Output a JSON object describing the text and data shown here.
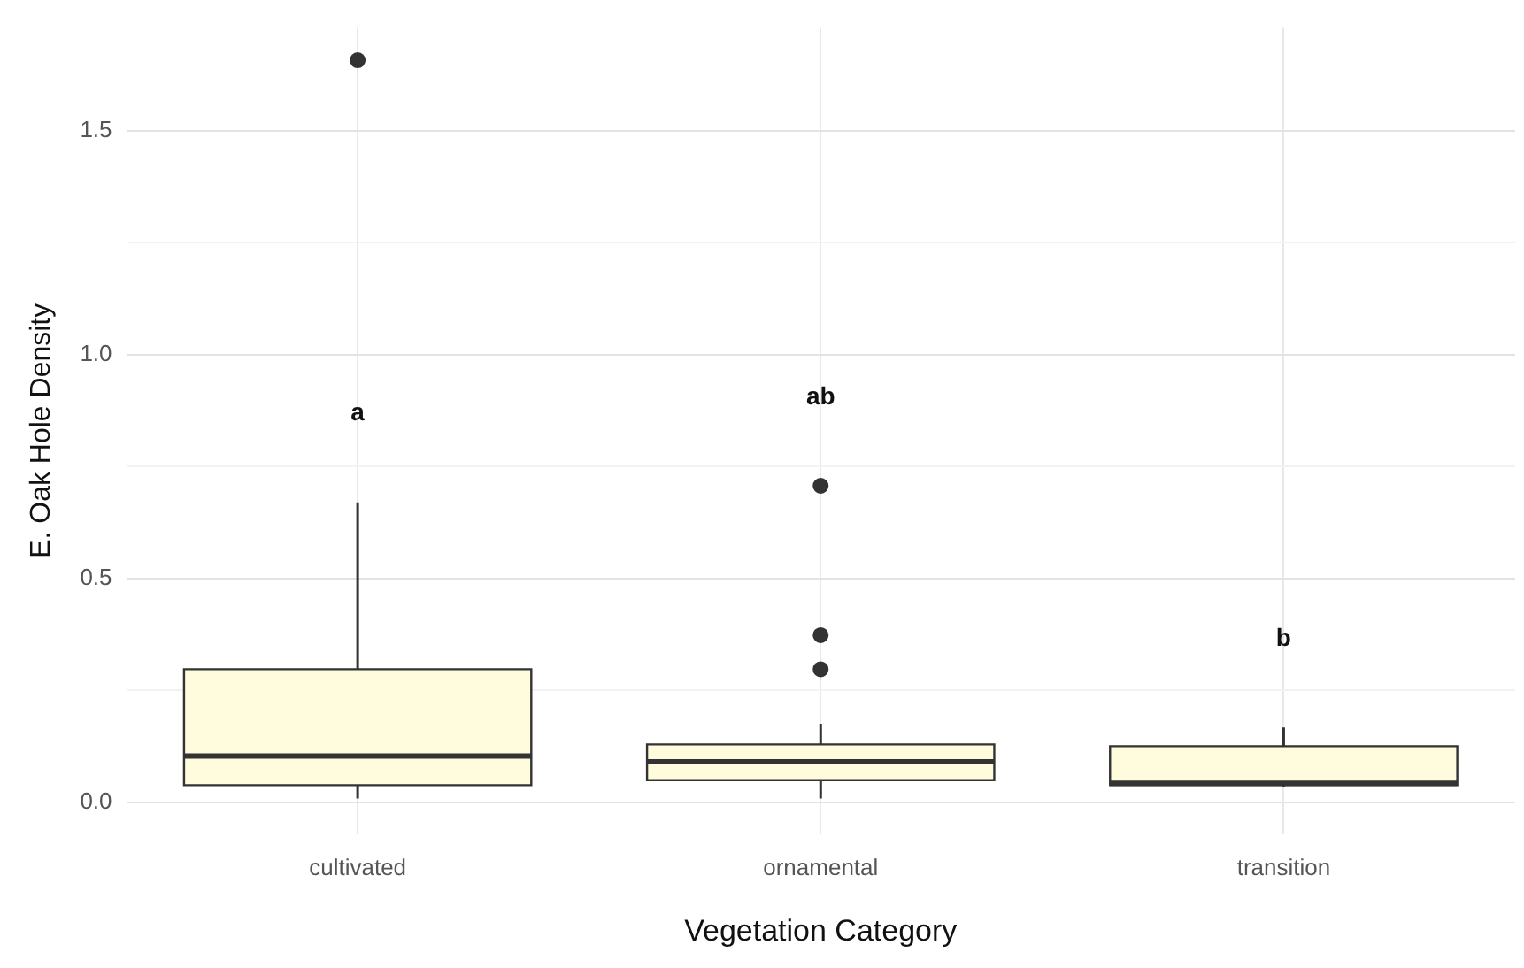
{
  "chart_data": {
    "type": "box",
    "xlabel": "Vegetation Category",
    "ylabel": "E. Oak Hole Density",
    "categories": [
      "cultivated",
      "ornamental",
      "transition"
    ],
    "boxes": [
      {
        "low": 0.008,
        "q1": 0.038,
        "median": 0.103,
        "q3": 0.297,
        "high": 0.67,
        "outliers": [
          1.658
        ]
      },
      {
        "low": 0.008,
        "q1": 0.049,
        "median": 0.09,
        "q3": 0.129,
        "high": 0.175,
        "outliers": [
          0.707,
          0.373,
          0.297
        ]
      },
      {
        "low": 0.034,
        "q1": 0.038,
        "median": 0.042,
        "q3": 0.125,
        "high": 0.167
      }
    ],
    "color": "#fefcdc",
    "ylim": [
      -0.07,
      1.73
    ],
    "yticks": [
      {
        "value": 0,
        "label": "0.0"
      },
      {
        "value": 0.25,
        "label": null
      },
      0.5,
      {
        "value": 0.75,
        "label": null
      },
      {
        "value": 1,
        "label": "1.0"
      },
      {
        "value": 1.25,
        "label": null
      },
      1.5
    ],
    "grid": true,
    "annotations": [
      "a",
      "ab",
      "b"
    ]
  }
}
